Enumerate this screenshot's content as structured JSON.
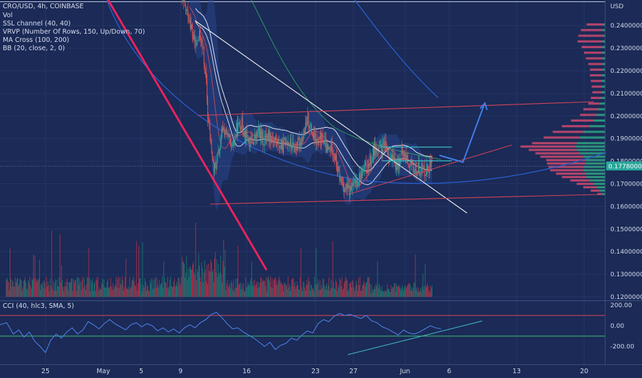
{
  "legend": {
    "symbol": "CRO/USD, 4h, COINBASE",
    "indicators": [
      "Vol",
      "SSL channel (40, 40)",
      "VRVP (Number Of Rows, 150, Up/Down, 70)",
      "MA Cross (100, 200)",
      "BB (20, close, 2, 0)"
    ]
  },
  "cci_legend": "CCI (40, hlc3, SMA, 5)",
  "currency": "USD",
  "last_price": "0.17780000",
  "colors": {
    "background": "#1b2a56",
    "bull": "#26a69a",
    "bear": "#ef5350",
    "bull_volume": "#1f7a73",
    "bear_volume": "#b5334a",
    "trend_pink": "#e8235e",
    "ma_blue": "#2a5fd0",
    "cci_line": "#4d7fe6",
    "channel_red": "#d9425a",
    "arrow_blue": "#3f7ee8",
    "vp_up": "#2e9c7f",
    "vp_down": "#c2476d"
  },
  "chart_data": [
    {
      "type": "candlestick",
      "timeframe": "4h",
      "x_ticks": [
        "25",
        "May",
        "5",
        "9",
        "16",
        "23",
        "27",
        "Jun",
        "6",
        "13",
        "20"
      ],
      "y_ticks": [
        "0.24000000",
        "0.23000000",
        "0.22000000",
        "0.21000000",
        "0.20000000",
        "0.19000000",
        "0.18000000",
        "0.17000000",
        "0.16000000",
        "0.15000000",
        "0.14000000",
        "0.13000000",
        "0.12000000"
      ],
      "ylim": [
        0.12,
        0.253
      ],
      "last_price": 0.1778,
      "grid": true,
      "price_path": [
        [
          0,
          0.2525
        ],
        [
          12,
          0.243
        ],
        [
          16,
          0.236
        ],
        [
          20,
          0.231
        ],
        [
          26,
          0.236
        ],
        [
          30,
          0.228
        ],
        [
          34,
          0.214
        ],
        [
          36,
          0.2
        ],
        [
          40,
          0.188
        ],
        [
          44,
          0.176
        ],
        [
          48,
          0.18
        ],
        [
          52,
          0.186
        ],
        [
          56,
          0.195
        ],
        [
          62,
          0.191
        ],
        [
          68,
          0.185
        ],
        [
          74,
          0.194
        ],
        [
          80,
          0.197
        ],
        [
          86,
          0.192
        ],
        [
          92,
          0.188
        ],
        [
          98,
          0.19
        ],
        [
          104,
          0.193
        ],
        [
          110,
          0.189
        ],
        [
          116,
          0.192
        ],
        [
          122,
          0.19
        ],
        [
          128,
          0.188
        ],
        [
          134,
          0.186
        ],
        [
          140,
          0.19
        ],
        [
          146,
          0.187
        ],
        [
          152,
          0.186
        ],
        [
          158,
          0.189
        ],
        [
          164,
          0.193
        ],
        [
          168,
          0.199
        ],
        [
          172,
          0.194
        ],
        [
          176,
          0.19
        ],
        [
          182,
          0.188
        ],
        [
          188,
          0.19
        ],
        [
          194,
          0.184
        ],
        [
          200,
          0.187
        ],
        [
          204,
          0.182
        ],
        [
          208,
          0.175
        ],
        [
          212,
          0.171
        ],
        [
          218,
          0.168
        ],
        [
          224,
          0.167
        ],
        [
          230,
          0.17
        ],
        [
          236,
          0.173
        ],
        [
          242,
          0.176
        ],
        [
          248,
          0.178
        ],
        [
          252,
          0.181
        ],
        [
          256,
          0.186
        ],
        [
          262,
          0.184
        ],
        [
          268,
          0.187
        ],
        [
          274,
          0.184
        ],
        [
          280,
          0.18
        ],
        [
          286,
          0.178
        ],
        [
          292,
          0.183
        ],
        [
          298,
          0.182
        ],
        [
          304,
          0.177
        ],
        [
          310,
          0.176
        ],
        [
          316,
          0.177
        ],
        [
          322,
          0.176
        ],
        [
          328,
          0.1778
        ]
      ],
      "volume_profile": [
        [
          0.2405,
          20,
          2
        ],
        [
          0.238,
          26,
          3
        ],
        [
          0.2355,
          30,
          2
        ],
        [
          0.233,
          30,
          3
        ],
        [
          0.2305,
          25,
          3
        ],
        [
          0.228,
          22,
          3
        ],
        [
          0.2255,
          20,
          3
        ],
        [
          0.223,
          17,
          3
        ],
        [
          0.2205,
          15,
          3
        ],
        [
          0.218,
          14,
          4
        ],
        [
          0.2155,
          13,
          4
        ],
        [
          0.213,
          12,
          4
        ],
        [
          0.2105,
          11,
          4
        ],
        [
          0.208,
          12,
          5
        ],
        [
          0.2055,
          14,
          6
        ],
        [
          0.203,
          18,
          8
        ],
        [
          0.2005,
          20,
          10
        ],
        [
          0.198,
          27,
          14
        ],
        [
          0.1955,
          33,
          19
        ],
        [
          0.193,
          38,
          25
        ],
        [
          0.1905,
          44,
          30
        ],
        [
          0.188,
          54,
          34
        ],
        [
          0.1865,
          66,
          36
        ],
        [
          0.185,
          58,
          34
        ],
        [
          0.1835,
          54,
          30
        ],
        [
          0.182,
          52,
          26
        ],
        [
          0.1805,
          48,
          23
        ],
        [
          0.179,
          46,
          24
        ],
        [
          0.1775,
          43,
          25
        ],
        [
          0.176,
          40,
          26
        ],
        [
          0.1745,
          35,
          24
        ],
        [
          0.173,
          30,
          22
        ],
        [
          0.1715,
          24,
          18
        ],
        [
          0.17,
          20,
          14
        ],
        [
          0.1685,
          16,
          10
        ],
        [
          0.167,
          11,
          6
        ],
        [
          0.1655,
          6,
          3
        ]
      ]
    },
    {
      "type": "line",
      "name": "CCI",
      "y_ticks": [
        "200.00",
        "0.00",
        "-200.00"
      ],
      "ylim": [
        -280,
        210
      ],
      "levels": [
        100,
        -100
      ],
      "series": [
        [
          0,
          10
        ],
        [
          5,
          30
        ],
        [
          10,
          -80
        ],
        [
          14,
          -40
        ],
        [
          18,
          -110
        ],
        [
          22,
          -60
        ],
        [
          26,
          -150
        ],
        [
          30,
          -200
        ],
        [
          34,
          -260
        ],
        [
          38,
          -140
        ],
        [
          42,
          -80
        ],
        [
          46,
          -120
        ],
        [
          50,
          -60
        ],
        [
          54,
          -20
        ],
        [
          58,
          -80
        ],
        [
          62,
          -40
        ],
        [
          66,
          40
        ],
        [
          70,
          10
        ],
        [
          74,
          -30
        ],
        [
          78,
          20
        ],
        [
          82,
          60
        ],
        [
          86,
          20
        ],
        [
          90,
          -10
        ],
        [
          94,
          -40
        ],
        [
          98,
          10
        ],
        [
          102,
          30
        ],
        [
          106,
          -10
        ],
        [
          110,
          20
        ],
        [
          114,
          0
        ],
        [
          118,
          -50
        ],
        [
          122,
          -20
        ],
        [
          126,
          -60
        ],
        [
          130,
          -30
        ],
        [
          134,
          -70
        ],
        [
          138,
          -20
        ],
        [
          142,
          10
        ],
        [
          146,
          -20
        ],
        [
          150,
          30
        ],
        [
          154,
          60
        ],
        [
          158,
          110
        ],
        [
          162,
          130
        ],
        [
          166,
          80
        ],
        [
          170,
          20
        ],
        [
          174,
          -30
        ],
        [
          178,
          -20
        ],
        [
          182,
          -60
        ],
        [
          186,
          -90
        ],
        [
          190,
          -120
        ],
        [
          194,
          -160
        ],
        [
          198,
          -200
        ],
        [
          202,
          -160
        ],
        [
          206,
          -230
        ],
        [
          210,
          -190
        ],
        [
          214,
          -170
        ],
        [
          218,
          -120
        ],
        [
          222,
          -140
        ],
        [
          226,
          -90
        ],
        [
          230,
          -50
        ],
        [
          234,
          -70
        ],
        [
          238,
          20
        ],
        [
          242,
          60
        ],
        [
          246,
          40
        ],
        [
          250,
          90
        ],
        [
          254,
          120
        ],
        [
          258,
          100
        ],
        [
          262,
          110
        ],
        [
          266,
          90
        ],
        [
          270,
          70
        ],
        [
          274,
          100
        ],
        [
          278,
          50
        ],
        [
          282,
          30
        ],
        [
          286,
          -10
        ],
        [
          290,
          -30
        ],
        [
          294,
          -60
        ],
        [
          298,
          -90
        ],
        [
          302,
          -40
        ],
        [
          306,
          -70
        ],
        [
          310,
          -80
        ],
        [
          314,
          -60
        ],
        [
          318,
          -30
        ],
        [
          322,
          0
        ],
        [
          326,
          -20
        ],
        [
          330,
          -30
        ]
      ]
    }
  ]
}
